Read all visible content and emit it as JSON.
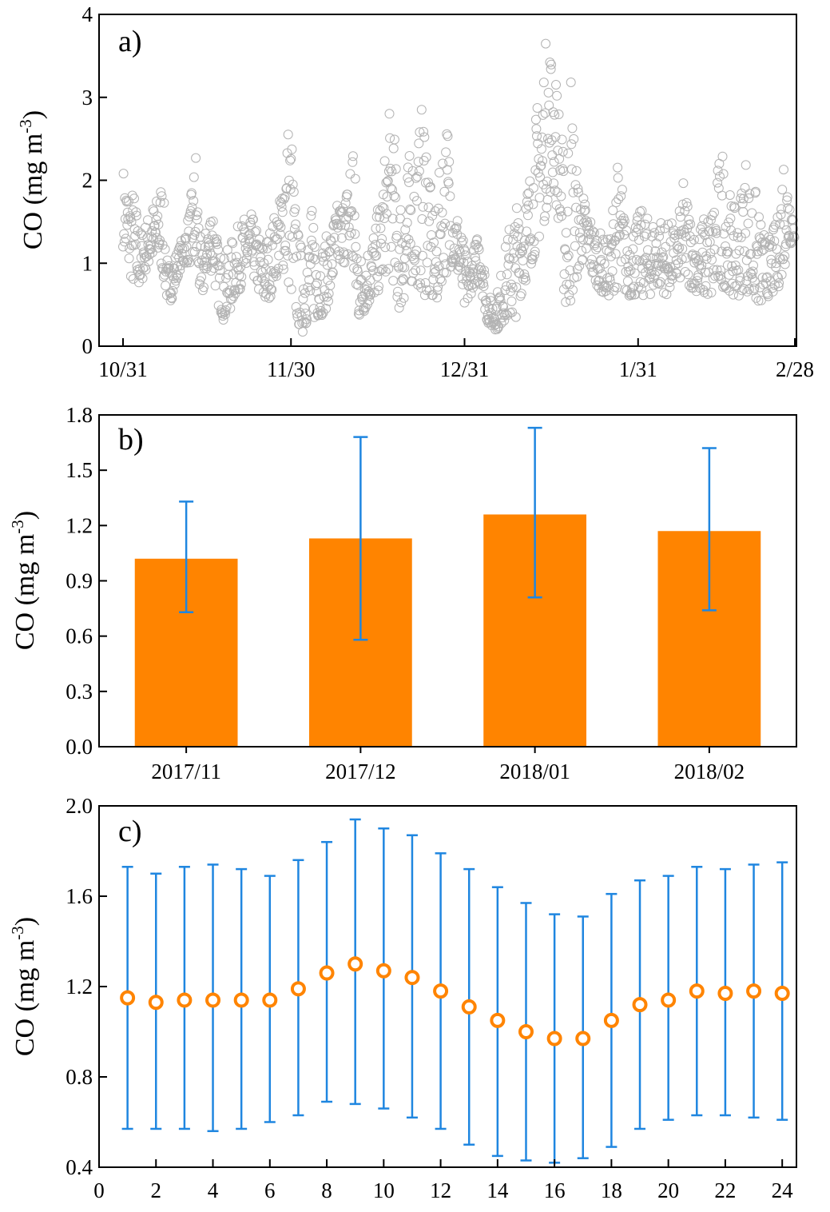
{
  "figure": {
    "panels": [
      {
        "label": "a)",
        "ylabel": "CO (mg m",
        "ylabel_sup": "-3",
        "ylabel_close": ")"
      },
      {
        "label": "b)",
        "ylabel": "CO (mg m",
        "ylabel_sup": "-3",
        "ylabel_close": ")"
      },
      {
        "label": "c)",
        "ylabel": "CO (mg m",
        "ylabel_sup": "-3",
        "ylabel_close": ")"
      }
    ]
  },
  "colors": {
    "scatter_marker": "#b3b3b3",
    "bar_fill": "#ff8400",
    "error_bar": "#1f86e0",
    "point_marker": "#ff8400"
  },
  "chart_data": [
    {
      "type": "scatter",
      "title": "",
      "panel_label": "a)",
      "ylabel": "CO (mg m-3)",
      "xlabel": "",
      "x_axis": "date (day of season, 0 = 10/31, 120 = 2/28)",
      "xlim": [
        0,
        120
      ],
      "ylim": [
        0,
        4
      ],
      "xticks": [
        0,
        30,
        61,
        92,
        120
      ],
      "xtick_labels": [
        "10/31",
        "11/30",
        "12/31",
        "1/31",
        "2/28"
      ],
      "yticks": [
        0,
        1,
        2,
        3,
        4
      ],
      "ytick_labels": [
        "0",
        "1",
        "2",
        "3",
        "4"
      ],
      "marker": "open circle",
      "daily_envelope": {
        "day": [
          0,
          1,
          2,
          3,
          4,
          5,
          6,
          7,
          8,
          9,
          10,
          11,
          12,
          13,
          14,
          15,
          16,
          17,
          18,
          19,
          20,
          21,
          22,
          23,
          24,
          25,
          26,
          27,
          28,
          29,
          30,
          31,
          32,
          33,
          34,
          35,
          36,
          37,
          38,
          39,
          40,
          41,
          42,
          43,
          44,
          45,
          46,
          47,
          48,
          49,
          50,
          51,
          52,
          53,
          54,
          55,
          56,
          57,
          58,
          59,
          60,
          61,
          62,
          63,
          64,
          65,
          66,
          67,
          68,
          69,
          70,
          71,
          72,
          73,
          74,
          75,
          76,
          77,
          78,
          79,
          80,
          81,
          82,
          83,
          84,
          85,
          86,
          87,
          88,
          89,
          90,
          91,
          92,
          93,
          94,
          95,
          96,
          97,
          98,
          99,
          100,
          101,
          102,
          103,
          104,
          105,
          106,
          107,
          108,
          109,
          110,
          111,
          112,
          113,
          114,
          115,
          116,
          117,
          118,
          119,
          120
        ],
        "low": [
          1.2,
          0.9,
          0.7,
          0.7,
          0.9,
          1.0,
          1.1,
          0.9,
          0.5,
          0.6,
          0.9,
          1.0,
          1.0,
          0.9,
          0.5,
          0.9,
          0.9,
          0.5,
          0.3,
          0.4,
          0.6,
          0.7,
          0.8,
          0.9,
          0.7,
          0.5,
          0.5,
          0.8,
          0.9,
          0.9,
          0.6,
          0.3,
          0.15,
          0.3,
          0.3,
          0.35,
          0.4,
          0.6,
          0.9,
          1.0,
          1.0,
          0.7,
          0.3,
          0.4,
          0.5,
          0.6,
          0.7,
          0.9,
          0.9,
          0.4,
          0.5,
          0.7,
          0.8,
          0.7,
          0.6,
          0.5,
          0.5,
          0.8,
          0.9,
          1.0,
          0.8,
          0.4,
          0.6,
          0.8,
          0.7,
          0.3,
          0.2,
          0.2,
          0.3,
          0.3,
          0.3,
          0.6,
          0.8,
          1.0,
          1.2,
          1.4,
          1.8,
          1.9,
          1.4,
          0.4,
          0.5,
          0.8,
          1.0,
          1.0,
          0.8,
          0.7,
          0.6,
          0.6,
          0.7,
          0.7,
          0.6,
          0.6,
          0.6,
          0.6,
          0.6,
          0.7,
          0.7,
          0.6,
          0.7,
          0.8,
          0.8,
          0.7,
          0.7,
          0.6,
          0.6,
          0.55,
          0.6,
          0.7,
          0.7,
          0.6,
          0.6,
          0.7,
          0.6,
          0.5,
          0.5,
          0.6,
          0.6,
          0.7,
          0.9,
          1.2,
          1.3
        ],
        "high": [
          2.2,
          2.0,
          1.9,
          1.4,
          1.5,
          1.7,
          1.8,
          2.1,
          1.0,
          1.1,
          1.2,
          1.4,
          1.7,
          2.5,
          1.1,
          1.5,
          1.9,
          1.2,
          1.1,
          1.2,
          1.4,
          1.5,
          1.6,
          1.6,
          1.4,
          1.3,
          1.4,
          1.6,
          1.8,
          2.8,
          2.8,
          1.5,
          1.2,
          1.4,
          1.8,
          1.2,
          1.3,
          1.4,
          1.7,
          1.8,
          2.0,
          3.1,
          1.2,
          1.1,
          1.3,
          1.5,
          1.8,
          2.5,
          3.1,
          2.0,
          1.9,
          2.3,
          2.5,
          2.7,
          3.3,
          1.8,
          1.6,
          2.6,
          2.8,
          1.8,
          1.6,
          1.2,
          1.0,
          1.3,
          1.5,
          0.6,
          0.6,
          0.7,
          1.1,
          1.5,
          1.7,
          1.8,
          2.0,
          2.2,
          3.0,
          3.5,
          3.9,
          3.5,
          2.9,
          2.1,
          3.5,
          2.2,
          1.9,
          1.7,
          1.5,
          1.4,
          1.3,
          1.3,
          2.3,
          2.1,
          1.4,
          1.5,
          1.6,
          1.7,
          1.5,
          1.6,
          1.6,
          1.5,
          1.5,
          1.4,
          2.0,
          1.8,
          1.4,
          1.5,
          1.6,
          1.7,
          2.1,
          2.5,
          2.0,
          1.7,
          1.6,
          2.5,
          2.0,
          1.9,
          1.5,
          1.3,
          1.4,
          1.6,
          2.5,
          2.0,
          1.6
        ]
      }
    },
    {
      "type": "bar",
      "title": "",
      "panel_label": "b)",
      "ylabel": "CO (mg m-3)",
      "xlabel": "",
      "categories": [
        "2017/11",
        "2017/12",
        "2018/01",
        "2018/02"
      ],
      "values": [
        1.02,
        1.13,
        1.26,
        1.17
      ],
      "error_lower": [
        0.73,
        0.58,
        0.81,
        0.74
      ],
      "error_upper": [
        1.33,
        1.68,
        1.73,
        1.62
      ],
      "ylim": [
        0.0,
        1.8
      ],
      "yticks": [
        0.0,
        0.3,
        0.6,
        0.9,
        1.2,
        1.5,
        1.8
      ],
      "ytick_labels": [
        "0.0",
        "0.3",
        "0.6",
        "0.9",
        "1.2",
        "1.5",
        "1.8"
      ]
    },
    {
      "type": "scatter",
      "title": "",
      "panel_label": "c)",
      "ylabel": "CO (mg m-3)",
      "xlabel": "",
      "x": [
        1,
        2,
        3,
        4,
        5,
        6,
        7,
        8,
        9,
        10,
        11,
        12,
        13,
        14,
        15,
        16,
        17,
        18,
        19,
        20,
        21,
        22,
        23,
        24
      ],
      "values": [
        1.15,
        1.13,
        1.14,
        1.14,
        1.14,
        1.14,
        1.19,
        1.26,
        1.3,
        1.27,
        1.24,
        1.18,
        1.11,
        1.05,
        1.0,
        0.97,
        0.97,
        1.05,
        1.12,
        1.14,
        1.18,
        1.17,
        1.18,
        1.17
      ],
      "error_lower": [
        0.57,
        0.57,
        0.57,
        0.56,
        0.57,
        0.6,
        0.63,
        0.69,
        0.68,
        0.66,
        0.62,
        0.57,
        0.5,
        0.45,
        0.43,
        0.42,
        0.44,
        0.49,
        0.57,
        0.61,
        0.63,
        0.63,
        0.62,
        0.61
      ],
      "error_upper": [
        1.73,
        1.7,
        1.73,
        1.74,
        1.72,
        1.69,
        1.76,
        1.84,
        1.94,
        1.9,
        1.87,
        1.79,
        1.72,
        1.64,
        1.57,
        1.52,
        1.51,
        1.61,
        1.67,
        1.69,
        1.73,
        1.72,
        1.74,
        1.75
      ],
      "xlim": [
        0,
        24.5
      ],
      "ylim": [
        0.4,
        2.0
      ],
      "xticks": [
        0,
        2,
        4,
        6,
        8,
        10,
        12,
        14,
        16,
        18,
        20,
        22,
        24
      ],
      "xtick_labels": [
        "0",
        "2",
        "4",
        "6",
        "8",
        "10",
        "12",
        "14",
        "16",
        "18",
        "20",
        "22",
        "24"
      ],
      "yticks": [
        0.4,
        0.8,
        1.2,
        1.6,
        2.0
      ],
      "ytick_labels": [
        "0.4",
        "0.8",
        "1.2",
        "1.6",
        "2.0"
      ],
      "marker": "open circle"
    }
  ]
}
